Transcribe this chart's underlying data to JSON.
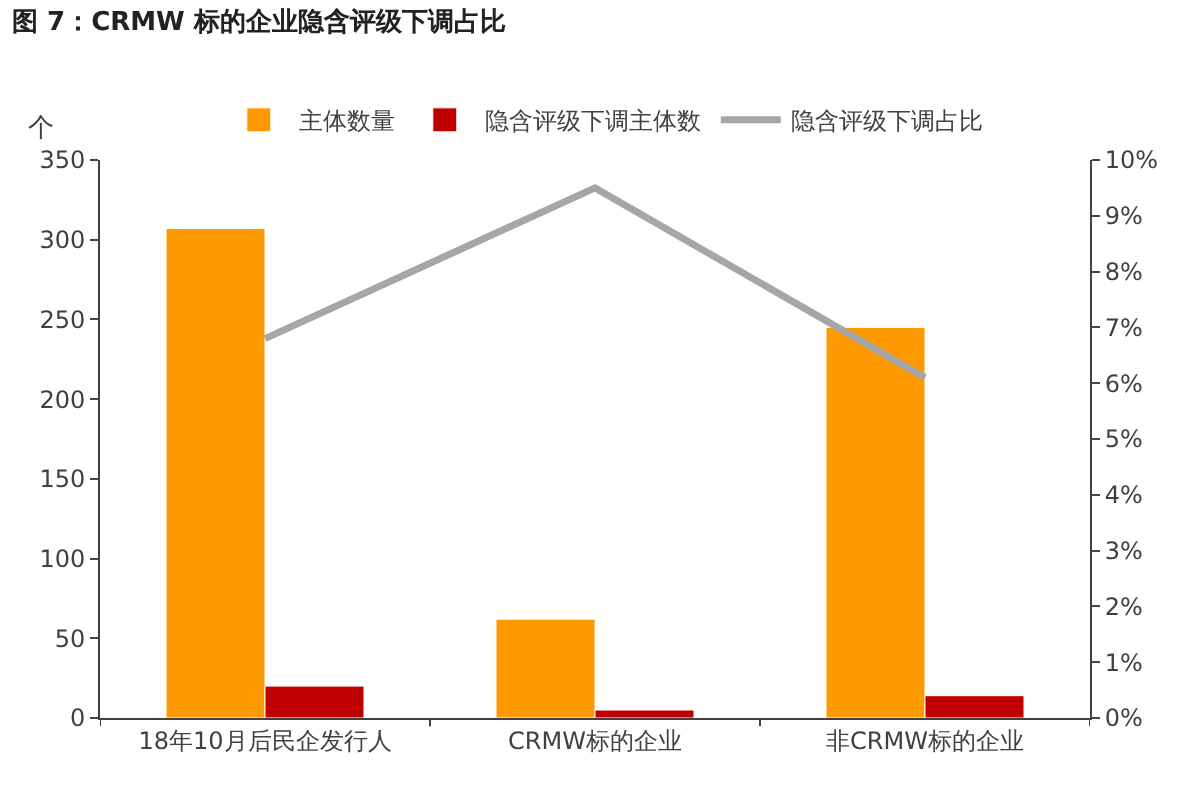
{
  "chart_data": {
    "type": "bar",
    "title": "图 7：CRMW 标的企业隐含评级下调占比",
    "ylabel": "个",
    "categories": [
      "18年10月后民企发行人",
      "CRMW标的企业",
      "非CRMW标的企业"
    ],
    "series": [
      {
        "name": "主体数量",
        "color": "#ff9900",
        "values": [
          307,
          62,
          245
        ]
      },
      {
        "name": "隐含评级下调主体数",
        "color": "#c00000",
        "values": [
          20,
          5,
          14
        ]
      },
      {
        "name": "隐含评级下调占比",
        "type": "line",
        "axis": "y2",
        "color": "#a6a6a6",
        "values": [
          6.8,
          9.5,
          6.1
        ]
      }
    ],
    "ylim": [
      0,
      350
    ],
    "yticks": [
      0,
      50,
      100,
      150,
      200,
      250,
      300,
      350
    ],
    "y2lim": [
      0,
      10
    ],
    "y2ticks": [
      {
        "value": 0,
        "label": "0%"
      },
      {
        "value": 1,
        "label": "1%"
      },
      {
        "value": 2,
        "label": "2%"
      },
      {
        "value": 3,
        "label": "3%"
      },
      {
        "value": 4,
        "label": "4%"
      },
      {
        "value": 5,
        "label": "5%"
      },
      {
        "value": 6,
        "label": "6%"
      },
      {
        "value": 7,
        "label": "7%"
      },
      {
        "value": 8,
        "label": "8%"
      },
      {
        "value": 9,
        "label": "9%"
      },
      {
        "value": 10,
        "label": "10%"
      }
    ],
    "grid": false,
    "legend": "top",
    "marker": "none",
    "line_style": "solid"
  }
}
